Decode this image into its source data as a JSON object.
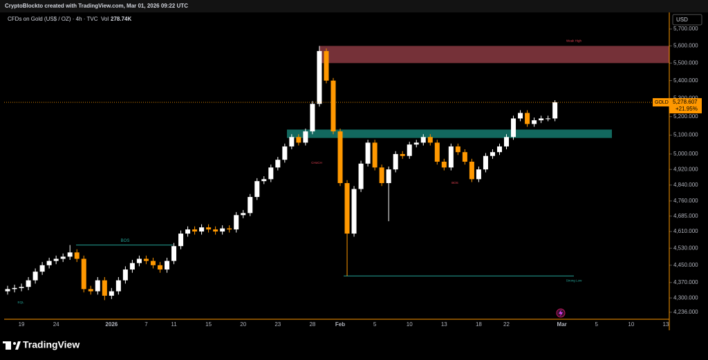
{
  "header": {
    "credit": "CryptoBlockto created with TradingView.com, Mar 01, 2026 09:22 UTC",
    "symbol": "CFDs on Gold (US$ / OZ) · 4h · TVC",
    "volume_prefix": "Vol",
    "volume_label": "278.74K"
  },
  "footer": {
    "brand": "TradingView"
  },
  "chart_data": {
    "type": "candlestick",
    "log_scale": true,
    "currency": "USD",
    "up_color": "#ffffff",
    "down_color": "#ff9800",
    "categories": [
      null,
      null,
      "19",
      null,
      null,
      null,
      null,
      "24",
      null,
      null,
      null,
      null,
      null,
      null,
      null,
      "2026",
      null,
      null,
      null,
      null,
      "7",
      null,
      null,
      null,
      "11",
      null,
      null,
      null,
      null,
      "15",
      null,
      null,
      null,
      null,
      "20",
      null,
      null,
      null,
      null,
      "23",
      null,
      null,
      null,
      null,
      "28",
      null,
      null,
      null,
      "Feb",
      null,
      null,
      null,
      null,
      "5",
      null,
      null,
      null,
      null,
      "10",
      null,
      null,
      null,
      null,
      "13",
      null,
      null,
      null,
      null,
      "18",
      null,
      null,
      null,
      "22",
      null,
      null,
      null,
      null,
      null,
      null,
      null,
      "Mar",
      null,
      null,
      null,
      null,
      "5",
      null,
      null,
      null,
      null,
      "10",
      null,
      null,
      null,
      null,
      "13"
    ],
    "open": [
      4330,
      4340,
      4345,
      4350,
      4380,
      4420,
      4450,
      4470,
      4480,
      4490,
      4510,
      4480,
      4340,
      4330,
      4380,
      4310,
      4330,
      4380,
      4430,
      4460,
      4480,
      4470,
      4450,
      4430,
      4470,
      4540,
      4600,
      4620,
      4610,
      4630,
      4620,
      4610,
      4625,
      4620,
      4690,
      4700,
      4780,
      4860,
      4870,
      4930,
      4970,
      5040,
      5090,
      5060,
      5120,
      5270,
      5570,
      5400,
      5120,
      4850,
      4600,
      4820,
      4950,
      5060,
      4930,
      4850,
      4920,
      5000,
      4990,
      5050,
      5060,
      5090,
      5060,
      4960,
      4930,
      5040,
      5010,
      4960,
      4870,
      4920,
      4990,
      5010,
      5040,
      5090,
      5190,
      5220,
      5160,
      5180,
      5190,
      5190,
      null,
      null,
      null,
      null,
      null,
      null,
      null,
      null,
      null,
      null,
      null,
      null,
      null,
      null,
      null,
      null
    ],
    "high": [
      4355,
      4360,
      4365,
      4395,
      4435,
      4465,
      4485,
      4495,
      4505,
      4545,
      4525,
      4495,
      4355,
      4395,
      4395,
      4345,
      4395,
      4445,
      4475,
      4495,
      4495,
      4485,
      4465,
      4485,
      4555,
      4615,
      4635,
      4635,
      4645,
      4645,
      4635,
      4640,
      4640,
      4705,
      4715,
      4795,
      4875,
      4885,
      4945,
      4985,
      5055,
      5105,
      5105,
      5135,
      5285,
      5600,
      5585,
      5415,
      5135,
      4865,
      4835,
      4965,
      5075,
      5075,
      4945,
      4935,
      5015,
      5015,
      5065,
      5075,
      5105,
      5105,
      5075,
      4975,
      5055,
      5055,
      5025,
      4975,
      4935,
      5005,
      5025,
      5055,
      5105,
      5205,
      5235,
      5235,
      5195,
      5205,
      5205,
      5290,
      null,
      null,
      null,
      null,
      null,
      null,
      null,
      null,
      null,
      null,
      null,
      null,
      null,
      null,
      null,
      null
    ],
    "low": [
      4315,
      4325,
      4330,
      4335,
      4365,
      4405,
      4435,
      4455,
      4465,
      4475,
      4465,
      4325,
      4315,
      4315,
      4290,
      4295,
      4315,
      4365,
      4415,
      4445,
      4455,
      4435,
      4415,
      4415,
      4455,
      4525,
      4585,
      4595,
      4595,
      4605,
      4595,
      4595,
      4605,
      4605,
      4675,
      4685,
      4765,
      4845,
      4855,
      4915,
      4955,
      5025,
      5045,
      5045,
      5105,
      5255,
      5385,
      5105,
      4835,
      4400,
      4585,
      4805,
      4935,
      4915,
      4835,
      4660,
      4905,
      4975,
      4975,
      5035,
      5045,
      5045,
      4945,
      4915,
      4915,
      4995,
      4945,
      4855,
      4855,
      4905,
      4975,
      4995,
      5025,
      5075,
      5175,
      5145,
      5145,
      5165,
      5175,
      5175,
      null,
      null,
      null,
      null,
      null,
      null,
      null,
      null,
      null,
      null,
      null,
      null,
      null,
      null,
      null,
      null
    ],
    "close": [
      4340,
      4345,
      4350,
      4380,
      4420,
      4450,
      4470,
      4480,
      4490,
      4510,
      4480,
      4340,
      4330,
      4380,
      4310,
      4330,
      4380,
      4430,
      4460,
      4480,
      4470,
      4450,
      4430,
      4470,
      4540,
      4600,
      4620,
      4610,
      4630,
      4620,
      4610,
      4625,
      4620,
      4690,
      4700,
      4780,
      4860,
      4870,
      4930,
      4970,
      5040,
      5090,
      5060,
      5120,
      5270,
      5570,
      5400,
      5120,
      4850,
      4600,
      4820,
      4950,
      5060,
      4930,
      4850,
      4920,
      5000,
      4990,
      5050,
      5060,
      5090,
      5060,
      4960,
      4930,
      5040,
      5010,
      4960,
      4870,
      4920,
      4990,
      5010,
      5040,
      5090,
      5190,
      5220,
      5160,
      5180,
      5190,
      5190,
      5278.607,
      null,
      null,
      null,
      null,
      null,
      null,
      null,
      null,
      null,
      null,
      null,
      null,
      null,
      null,
      null,
      null
    ],
    "last_price_name": "GOLD",
    "last_price_label": "5,278.607",
    "change_label": "+21.95%",
    "ylim": [
      4205,
      5800
    ],
    "yticks": [
      {
        "value": 4236,
        "label": "4,236.000"
      },
      {
        "value": 4300,
        "label": "4,300.000"
      },
      {
        "value": 4370,
        "label": "4,370.000"
      },
      {
        "value": 4450,
        "label": "4,450.000"
      },
      {
        "value": 4530,
        "label": "4,530.000"
      },
      {
        "value": 4610,
        "label": "4,610.000"
      },
      {
        "value": 4685,
        "label": "4,685.000"
      },
      {
        "value": 4760,
        "label": "4,760.000"
      },
      {
        "value": 4840,
        "label": "4,840.000"
      },
      {
        "value": 4920,
        "label": "4,920.000"
      },
      {
        "value": 5000,
        "label": "5,000.000"
      },
      {
        "value": 5100,
        "label": "5,100.000"
      },
      {
        "value": 5200,
        "label": "5,200.000"
      },
      {
        "value": 5300,
        "label": "5,300.000"
      },
      {
        "value": 5400,
        "label": "5,400.000"
      },
      {
        "value": 5500,
        "label": "5,500.000"
      },
      {
        "value": 5600,
        "label": "5,600.000"
      },
      {
        "value": 5700,
        "label": "5,700.000"
      }
    ],
    "zones": [
      {
        "label": "Weak High",
        "low": 5500,
        "high": 5600,
        "color": "#8a3a42"
      },
      {
        "low": 5085,
        "high": 5130,
        "color": "#157a6e"
      }
    ],
    "levels": [
      {
        "label": "BOS",
        "value": 4545,
        "color": "#26a69a"
      },
      {
        "label": "Strong Low",
        "value": 4400,
        "color": "#26a69a"
      }
    ],
    "annotations": [
      "CHoCH",
      "BOS",
      "EQL"
    ]
  }
}
